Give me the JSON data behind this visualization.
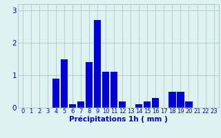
{
  "hours": [
    0,
    1,
    2,
    3,
    4,
    5,
    6,
    7,
    8,
    9,
    10,
    11,
    12,
    13,
    14,
    15,
    16,
    17,
    18,
    19,
    20,
    21,
    22,
    23
  ],
  "values": [
    0,
    0,
    0,
    0,
    0.9,
    1.5,
    0.1,
    0.2,
    1.4,
    2.7,
    1.1,
    1.1,
    0.2,
    0,
    0.1,
    0.2,
    0.3,
    0,
    0.5,
    0.5,
    0.2,
    0,
    0,
    0
  ],
  "bar_color": "#0000dd",
  "bg_color": "#dff2f2",
  "grid_color": "#aac8c8",
  "xlabel": "Précipitations 1h ( mm )",
  "ylim": [
    0,
    3.2
  ],
  "yticks": [
    0,
    1,
    2,
    3
  ],
  "xlabel_color": "#0000bb",
  "tick_color": "#0000bb",
  "xlabel_fontsize": 7.5,
  "tick_fontsize": 6.0,
  "ytick_fontsize": 7.5
}
